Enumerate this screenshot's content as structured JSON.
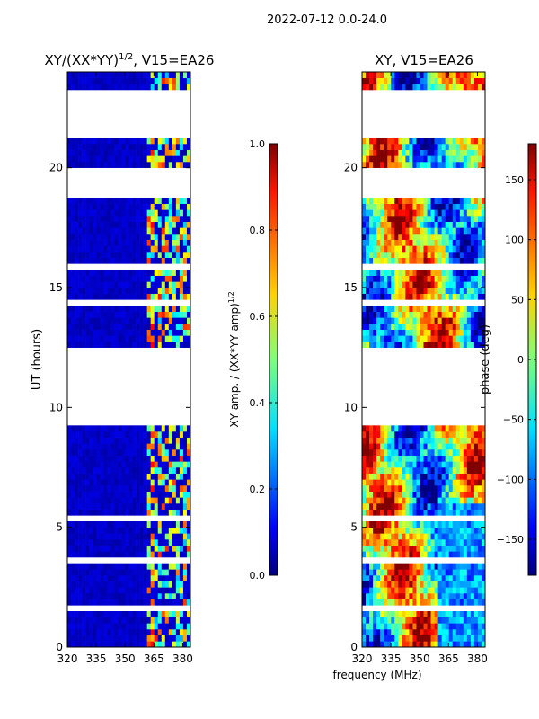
{
  "figure": {
    "suptitle": "2022-07-12 0.0-24.0",
    "xlabel": "frequency (MHz)"
  },
  "chart_data": [
    {
      "type": "heatmap",
      "title_main": "XY/(XX*YY)",
      "title_exp": "1/2",
      "title_rest": ", V15=EA26",
      "ylabel": "UT (hours)",
      "xlim": [
        320,
        384
      ],
      "ylim": [
        0,
        24
      ],
      "xticks": [
        320,
        335,
        350,
        365,
        380
      ],
      "yticks": [
        0,
        5,
        10,
        15,
        20
      ],
      "colormap": "jet",
      "data_gaps_hours": [
        [
          1.45,
          1.65
        ],
        [
          3.4,
          3.65
        ],
        [
          5.2,
          5.45
        ],
        [
          9.3,
          12.6
        ],
        [
          14.25,
          14.45
        ],
        [
          15.8,
          16.0
        ],
        [
          16.9,
          17.0
        ],
        [
          18.65,
          19.95
        ],
        [
          21.3,
          23.2
        ]
      ],
      "colorbar": {
        "label_main": "XY amp. / (XX*YY amp)",
        "label_exp": "1/2",
        "min": 0.0,
        "max": 1.0,
        "ticks": [
          "0.0",
          "0.2",
          "0.4",
          "0.6",
          "0.8",
          "1.0"
        ]
      }
    },
    {
      "type": "heatmap",
      "title": "XY, V15=EA26",
      "xlim": [
        320,
        384
      ],
      "ylim": [
        0,
        24
      ],
      "xticks": [
        320,
        335,
        350,
        365,
        380
      ],
      "yticks": [
        0,
        5,
        10,
        15,
        20
      ],
      "colormap": "jet",
      "data_gaps_hours": [
        [
          1.45,
          1.65
        ],
        [
          3.4,
          3.65
        ],
        [
          5.2,
          5.45
        ],
        [
          9.3,
          12.6
        ],
        [
          14.25,
          14.45
        ],
        [
          15.8,
          16.0
        ],
        [
          16.9,
          17.0
        ],
        [
          18.65,
          19.95
        ],
        [
          21.3,
          23.2
        ]
      ],
      "colorbar": {
        "label": "phase (deg)",
        "min": -180,
        "max": 180,
        "ticks": [
          "−150",
          "−100",
          "−50",
          "0",
          "50",
          "100",
          "150"
        ]
      }
    }
  ]
}
